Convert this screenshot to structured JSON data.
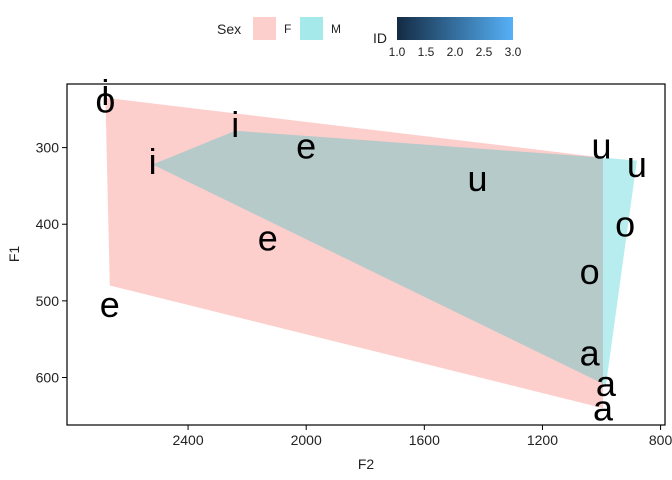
{
  "chart_data": {
    "type": "scatter",
    "xlabel": "F2",
    "ylabel": "F1",
    "x_reversed": true,
    "y_reversed": true,
    "xlim": [
      2810,
      785
    ],
    "ylim": [
      217,
      662
    ],
    "x_ticks": [
      2400,
      2000,
      1600,
      1200,
      800
    ],
    "y_ticks": [
      300,
      400,
      500,
      600
    ],
    "x_tick_labels": [
      "2400",
      "2000",
      "1600",
      "1200",
      "800"
    ],
    "y_tick_labels": [
      "300",
      "400",
      "500",
      "600"
    ],
    "legend": {
      "sex_title": "Sex",
      "sex_entries": [
        {
          "label": "F",
          "color": "#F8766D"
        },
        {
          "label": "M",
          "color": "#00BFC4"
        }
      ],
      "id_title": "ID",
      "id_ticks": [
        "1.0",
        "1.5",
        "2.0",
        "2.5",
        "3.0"
      ],
      "id_gradient": [
        "#132B43",
        "#56B1F7"
      ]
    },
    "polygons": [
      {
        "sex": "F",
        "color": "#F8766D",
        "opacity": 0.35,
        "vertices": [
          [
            2680,
            235
          ],
          [
            2665,
            480
          ],
          [
            995,
            640
          ],
          [
            995,
            313
          ]
        ]
      },
      {
        "sex": "M",
        "color": "#00BFC4",
        "opacity": 0.28,
        "vertices": [
          [
            2520,
            322
          ],
          [
            2240,
            278
          ],
          [
            995,
            313
          ],
          [
            880,
            317
          ],
          [
            985,
            610
          ]
        ]
      }
    ],
    "points": [
      {
        "label": "o",
        "x": 2680,
        "y": 238
      },
      {
        "label": "i",
        "x": 2680,
        "y": 228
      },
      {
        "label": "e",
        "x": 2665,
        "y": 505
      },
      {
        "label": "i",
        "x": 2520,
        "y": 318
      },
      {
        "label": "i",
        "x": 2240,
        "y": 270
      },
      {
        "label": "e",
        "x": 2130,
        "y": 418
      },
      {
        "label": "e",
        "x": 2000,
        "y": 298
      },
      {
        "label": "u",
        "x": 1420,
        "y": 340
      },
      {
        "label": "u",
        "x": 1000,
        "y": 298
      },
      {
        "label": "u",
        "x": 880,
        "y": 322
      },
      {
        "label": "o",
        "x": 920,
        "y": 400
      },
      {
        "label": "o",
        "x": 1040,
        "y": 462
      },
      {
        "label": "a",
        "x": 1040,
        "y": 568
      },
      {
        "label": "a",
        "x": 985,
        "y": 608
      },
      {
        "label": "a",
        "x": 995,
        "y": 640
      }
    ]
  }
}
